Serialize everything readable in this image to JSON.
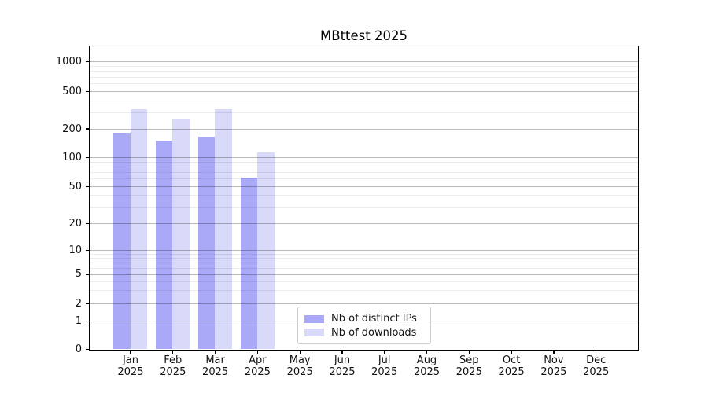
{
  "title": "MBttest 2025",
  "chart_data": {
    "type": "bar",
    "title": "MBttest 2025",
    "categories": [
      "Jan",
      "Feb",
      "Mar",
      "Apr",
      "May",
      "Jun",
      "Jul",
      "Aug",
      "Sep",
      "Oct",
      "Nov",
      "Dec"
    ],
    "x_tick_year": "2025",
    "y_ticks": [
      0,
      1,
      2,
      5,
      10,
      20,
      50,
      100,
      200,
      500,
      1000
    ],
    "y_scale": "log-like with 0 baseline",
    "ylim": [
      0,
      1400
    ],
    "grid": "horizontal major and minor gridlines",
    "legend_position": "bottom-center inside plot",
    "series": [
      {
        "name": "Nb of distinct IPs",
        "color": "#a9a9f7",
        "values": [
          180,
          150,
          165,
          62,
          null,
          null,
          null,
          null,
          null,
          null,
          null,
          null
        ]
      },
      {
        "name": "Nb of downloads",
        "color": "#d9d9f9",
        "values": [
          320,
          250,
          320,
          112,
          null,
          null,
          null,
          null,
          null,
          null,
          null,
          null
        ]
      }
    ]
  }
}
